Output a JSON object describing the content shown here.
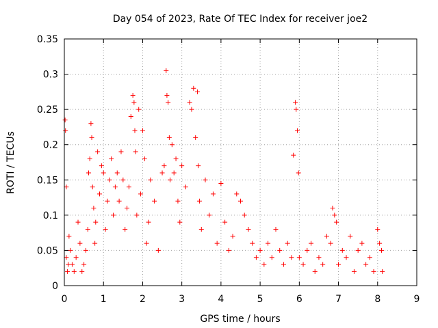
{
  "chart_data": {
    "type": "scatter",
    "title": "Day 054 of 2023, Rate Of TEC Index for receiver joe2",
    "xlabel": "GPS time / hours",
    "ylabel": "ROTI / TECUs",
    "xlim": [
      0,
      9
    ],
    "ylim": [
      0,
      0.35
    ],
    "x_ticks": [
      0,
      1,
      2,
      3,
      4,
      5,
      6,
      7,
      8,
      9
    ],
    "x_tick_labels": [
      "0",
      "1",
      "2",
      "3",
      "4",
      "5",
      "6",
      "7",
      "8",
      "9"
    ],
    "y_ticks": [
      0,
      0.05,
      0.1,
      0.15,
      0.2,
      0.25,
      0.3,
      0.35
    ],
    "y_tick_labels": [
      "0",
      "0.05",
      "0.1",
      "0.15",
      "0.2",
      "0.25",
      "0.3",
      "0.35"
    ],
    "grid": true,
    "marker": "+",
    "marker_color": "#ff0000",
    "series": [
      {
        "name": "ROTI",
        "color": "#ff0000",
        "x": [
          0.02,
          0.03,
          0.05,
          0.05,
          0.08,
          0.1,
          0.12,
          0.15,
          0.2,
          0.25,
          0.3,
          0.35,
          0.4,
          0.45,
          0.5,
          0.55,
          0.6,
          0.62,
          0.65,
          0.68,
          0.7,
          0.72,
          0.75,
          0.78,
          0.8,
          0.85,
          0.9,
          0.95,
          1.0,
          1.05,
          1.1,
          1.15,
          1.2,
          1.25,
          1.3,
          1.35,
          1.4,
          1.45,
          1.5,
          1.55,
          1.6,
          1.65,
          1.7,
          1.75,
          1.78,
          1.8,
          1.82,
          1.85,
          1.9,
          1.95,
          2.0,
          2.05,
          2.1,
          2.15,
          2.2,
          2.3,
          2.4,
          2.5,
          2.55,
          2.6,
          2.62,
          2.65,
          2.68,
          2.7,
          2.75,
          2.8,
          2.85,
          2.9,
          2.95,
          3.0,
          3.1,
          3.2,
          3.25,
          3.3,
          3.35,
          3.4,
          3.42,
          3.45,
          3.5,
          3.6,
          3.7,
          3.8,
          3.9,
          4.0,
          4.1,
          4.2,
          4.3,
          4.4,
          4.5,
          4.6,
          4.7,
          4.8,
          4.9,
          5.0,
          5.1,
          5.2,
          5.3,
          5.4,
          5.5,
          5.6,
          5.7,
          5.8,
          5.85,
          5.9,
          5.92,
          5.95,
          5.98,
          6.0,
          6.1,
          6.2,
          6.3,
          6.4,
          6.5,
          6.6,
          6.7,
          6.8,
          6.85,
          6.9,
          6.95,
          7.0,
          7.1,
          7.2,
          7.3,
          7.4,
          7.5,
          7.6,
          7.7,
          7.8,
          7.9,
          8.0,
          8.05,
          8.1,
          8.12
        ],
        "values": [
          0.235,
          0.22,
          0.14,
          0.04,
          0.02,
          0.03,
          0.07,
          0.05,
          0.03,
          0.02,
          0.04,
          0.09,
          0.06,
          0.02,
          0.03,
          0.05,
          0.08,
          0.16,
          0.18,
          0.23,
          0.21,
          0.14,
          0.11,
          0.06,
          0.09,
          0.19,
          0.13,
          0.17,
          0.16,
          0.08,
          0.12,
          0.15,
          0.18,
          0.1,
          0.14,
          0.16,
          0.12,
          0.19,
          0.15,
          0.08,
          0.11,
          0.14,
          0.24,
          0.27,
          0.26,
          0.22,
          0.19,
          0.1,
          0.25,
          0.13,
          0.22,
          0.18,
          0.06,
          0.09,
          0.15,
          0.12,
          0.05,
          0.16,
          0.17,
          0.305,
          0.27,
          0.26,
          0.21,
          0.15,
          0.2,
          0.16,
          0.18,
          0.12,
          0.09,
          0.17,
          0.14,
          0.26,
          0.25,
          0.28,
          0.21,
          0.275,
          0.17,
          0.12,
          0.08,
          0.15,
          0.1,
          0.13,
          0.06,
          0.145,
          0.09,
          0.05,
          0.07,
          0.13,
          0.12,
          0.1,
          0.08,
          0.06,
          0.04,
          0.05,
          0.03,
          0.06,
          0.04,
          0.08,
          0.05,
          0.03,
          0.06,
          0.04,
          0.185,
          0.26,
          0.25,
          0.22,
          0.16,
          0.04,
          0.03,
          0.05,
          0.06,
          0.02,
          0.04,
          0.03,
          0.07,
          0.06,
          0.11,
          0.1,
          0.09,
          0.03,
          0.05,
          0.04,
          0.07,
          0.02,
          0.05,
          0.06,
          0.03,
          0.04,
          0.02,
          0.08,
          0.06,
          0.05,
          0.02
        ]
      }
    ]
  }
}
